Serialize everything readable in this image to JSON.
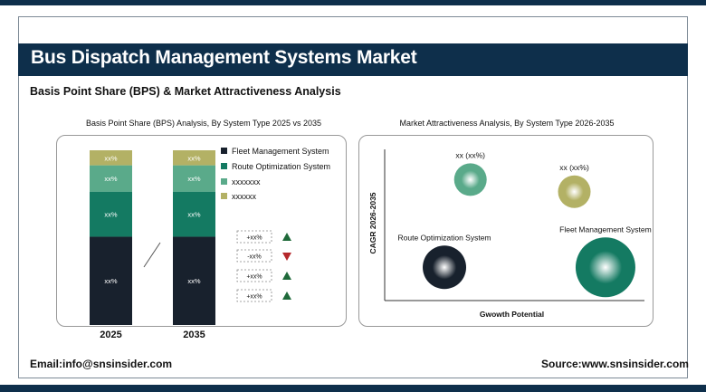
{
  "header": {
    "title": "Bus Dispatch Management Systems Market",
    "subtitle": "Basis Point Share (BPS) & Market Attractiveness Analysis"
  },
  "colors": {
    "navy": "#0e2f4b",
    "fleet": "#18212d",
    "route": "#147a62",
    "seg3": "#5aaa8a",
    "seg4": "#b3b165",
    "up": "#1f6a3a",
    "down": "#b5282c"
  },
  "chart_data": [
    {
      "type": "bar",
      "stacked": true,
      "title": "Basis Point Share (BPS) Analysis, By System Type 2025 vs 2035",
      "categories": [
        "2025",
        "2035"
      ],
      "series": [
        {
          "name": "Fleet Management System",
          "values": [
            47,
            47
          ],
          "labels": [
            "xx%",
            "xx%"
          ],
          "color": "#18212d"
        },
        {
          "name": "Route Optimization System",
          "values": [
            24,
            24
          ],
          "labels": [
            "xx%",
            "xx%"
          ],
          "color": "#147a62"
        },
        {
          "name": "xxxxxxx",
          "values": [
            14,
            14
          ],
          "labels": [
            "xx%",
            "xx%"
          ],
          "color": "#5aaa8a"
        },
        {
          "name": "xxxxxx",
          "values": [
            8,
            8
          ],
          "labels": [
            "xx%",
            "xx%"
          ],
          "color": "#b3b165"
        }
      ],
      "ylim": [
        0,
        100
      ],
      "legend_position": "right",
      "changes": [
        {
          "label": "+xx%",
          "direction": "up"
        },
        {
          "label": "-xx%",
          "direction": "down"
        },
        {
          "label": "+xx%",
          "direction": "up"
        },
        {
          "label": "+xx%",
          "direction": "up"
        }
      ]
    },
    {
      "type": "scatter",
      "title": "Market Attractiveness Analysis, By System Type 2026-2035",
      "xlabel": "Gwowth Potential",
      "ylabel": "CAGR 2026-2035",
      "xlim": [
        0,
        10
      ],
      "ylim": [
        0,
        10
      ],
      "points": [
        {
          "label": "xx (xx%)",
          "x": 3.3,
          "y": 8.0,
          "size": 3,
          "color": "#5aaa8a"
        },
        {
          "label": "xx (xx%)",
          "x": 7.3,
          "y": 7.2,
          "size": 3,
          "color": "#b3b165"
        },
        {
          "label": "Route Optimization System",
          "x": 2.3,
          "y": 2.2,
          "size": 4,
          "color": "#18212d"
        },
        {
          "label": "Fleet Management System",
          "x": 8.5,
          "y": 2.2,
          "size": 5.5,
          "color": "#147a62"
        }
      ]
    }
  ],
  "footer": {
    "email": "Email:info@snsinsider.com",
    "source": "Source:www.snsinsider.com"
  }
}
